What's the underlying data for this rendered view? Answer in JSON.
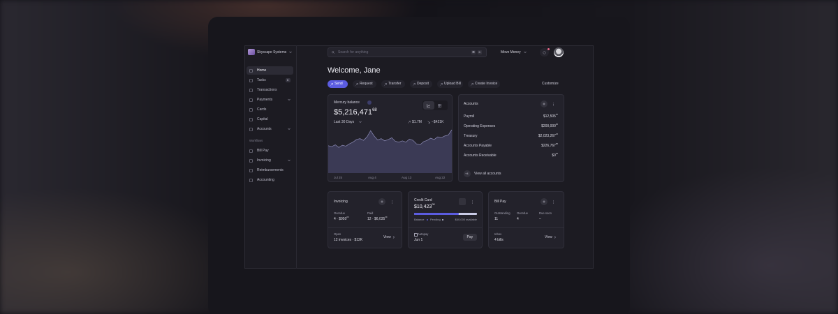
{
  "sidebar": {
    "company": "Skyscape Systems",
    "nav": [
      "Home",
      "Tasks",
      "Transactions",
      "Payments",
      "Cards",
      "Capital",
      "Accounts"
    ],
    "tasks_badge": "6",
    "section": "Workflows",
    "workflows": [
      "Bill Pay",
      "Invoicing",
      "Reimbursements",
      "Accounting"
    ]
  },
  "topbar": {
    "search_placeholder": "Search for anything",
    "shortcut": [
      "⌘",
      "K"
    ],
    "move_money": "Move Money"
  },
  "greeting": "Welcome, Jane",
  "actions": [
    "Send",
    "Request",
    "Transfer",
    "Deposit",
    "Upload Bill",
    "Create Invoice"
  ],
  "customize": "Customize",
  "balance": {
    "label": "Mercury balance",
    "amount": "$5,216,471",
    "cents": "68",
    "period": "Last 30 Days",
    "money_in": "$1.7M",
    "money_out": "−$421K",
    "chart": {
      "x_labels": [
        "Jul 25",
        "Aug 4",
        "Aug 13",
        "Aug 22"
      ],
      "values": [
        62,
        60,
        64,
        58,
        63,
        61,
        66,
        70,
        76,
        78,
        74,
        82,
        96,
        84,
        75,
        78,
        73,
        76,
        80,
        72,
        70,
        73,
        70,
        77,
        74,
        66,
        64,
        71,
        74,
        79,
        76,
        82,
        80,
        84,
        86,
        98
      ]
    }
  },
  "accounts": {
    "title": "Accounts",
    "rows": [
      {
        "name": "Payroll",
        "amount": "$12,505",
        "cents": "87"
      },
      {
        "name": "Operating Expenses",
        "amount": "$200,000",
        "cents": "00"
      },
      {
        "name": "Treasury",
        "amount": "$2,023,267",
        "cents": "16"
      },
      {
        "name": "Accounts Payable",
        "amount": "$226,767",
        "cents": "86"
      },
      {
        "name": "Accounts Receivable",
        "amount": "$0",
        "cents": "00"
      }
    ],
    "more": "+4",
    "view_all": "View all accounts"
  },
  "invoicing": {
    "title": "Invoicing",
    "overdue_label": "Overdue",
    "overdue": "4 · $950",
    "overdue_cents": "00",
    "paid_label": "Paid",
    "paid": "12 · $6,035",
    "paid_cents": "00",
    "open_label": "Open",
    "open": "12 invoices · $12K",
    "view": "View"
  },
  "credit_card": {
    "title": "Credit Card",
    "amount": "$10,423",
    "cents": "00",
    "balance": "Balance",
    "pending": "Pending",
    "available": "$40,000 available",
    "autopay": "Autopay",
    "date": "Jun 1",
    "pay": "Pay"
  },
  "bill_pay": {
    "title": "Bill Pay",
    "outstanding_label": "Outstanding",
    "outstanding": "11",
    "overdue_label": "Overdue",
    "overdue": "4",
    "due_soon_label": "Due soon",
    "due_soon": "–",
    "inbox_label": "Inbox",
    "inbox": "4 bills",
    "view": "View"
  }
}
